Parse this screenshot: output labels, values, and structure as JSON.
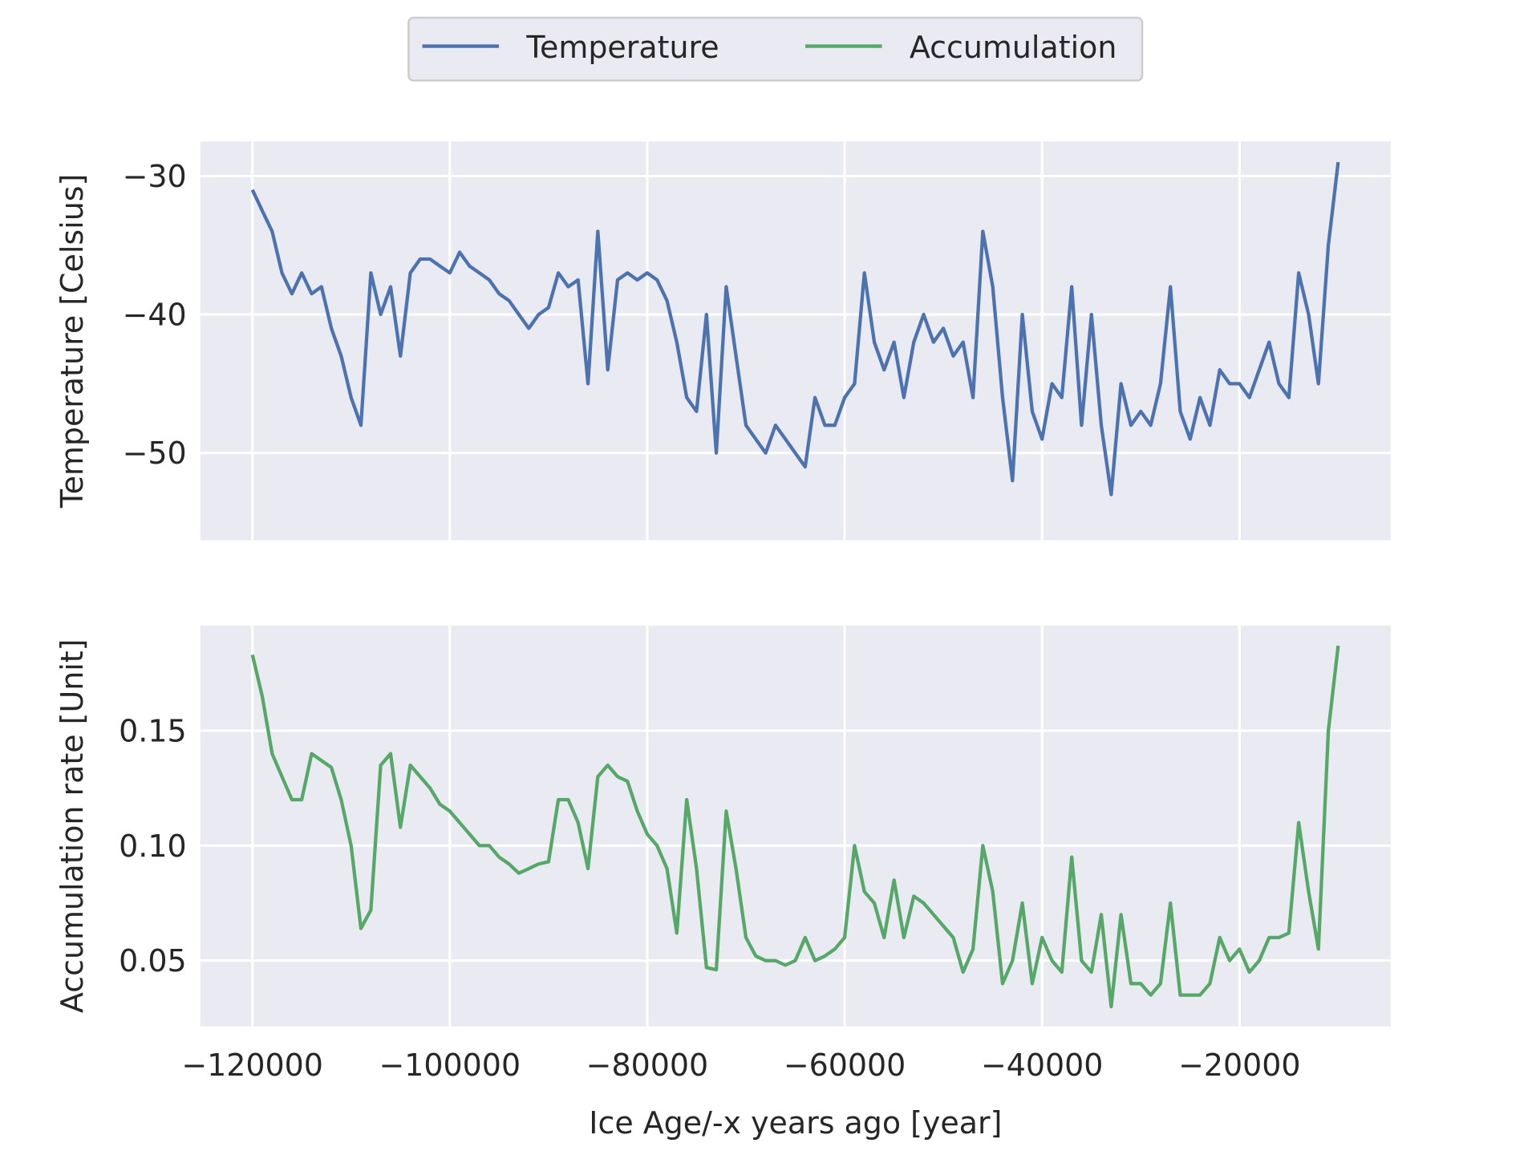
{
  "chart_data": [
    {
      "type": "line",
      "ylabel": "Temperature [Celsius]",
      "sharex": true,
      "x": [
        -120000,
        -119000,
        -118000,
        -117000,
        -116000,
        -115000,
        -114000,
        -113000,
        -112000,
        -111000,
        -110000,
        -109000,
        -108000,
        -107000,
        -106000,
        -105000,
        -104000,
        -103000,
        -102000,
        -101000,
        -100000,
        -99000,
        -98000,
        -97000,
        -96000,
        -95000,
        -94000,
        -93000,
        -92000,
        -91000,
        -90000,
        -89000,
        -88000,
        -87000,
        -86000,
        -85000,
        -84000,
        -83000,
        -82000,
        -81000,
        -80000,
        -79000,
        -78000,
        -77000,
        -76000,
        -75000,
        -74000,
        -73000,
        -72000,
        -71000,
        -70000,
        -69000,
        -68000,
        -67000,
        -66000,
        -65000,
        -64000,
        -63000,
        -62000,
        -61000,
        -60000,
        -59000,
        -58000,
        -57000,
        -56000,
        -55000,
        -54000,
        -53000,
        -52000,
        -51000,
        -50000,
        -49000,
        -48000,
        -47000,
        -46000,
        -45000,
        -44000,
        -43000,
        -42000,
        -41000,
        -40000,
        -39000,
        -38000,
        -37000,
        -36000,
        -35000,
        -34000,
        -33000,
        -32000,
        -31000,
        -30000,
        -29000,
        -28000,
        -27000,
        -26000,
        -25000,
        -24000,
        -23000,
        -22000,
        -21000,
        -20000,
        -19000,
        -18000,
        -17000,
        -16000,
        -15000,
        -14000,
        -13000,
        -12000,
        -11000,
        -10000
      ],
      "series": [
        {
          "name": "Temperature",
          "color": "#4c72b0",
          "values": [
            -31,
            -32.5,
            -34,
            -37,
            -38.5,
            -37,
            -38.5,
            -38,
            -41,
            -43,
            -46,
            -48,
            -37,
            -40,
            -38,
            -43,
            -37,
            -36,
            -36,
            -36.5,
            -37,
            -35.5,
            -36.5,
            -37,
            -37.5,
            -38.5,
            -39,
            -40,
            -41,
            -40,
            -39.5,
            -37,
            -38,
            -37.5,
            -45,
            -34,
            -44,
            -37.5,
            -37,
            -37.5,
            -37,
            -37.5,
            -39,
            -42,
            -46,
            -47,
            -40,
            -50,
            -38,
            -43,
            -48,
            -49,
            -50,
            -48,
            -49,
            -50,
            -51,
            -46,
            -48,
            -48,
            -46,
            -45,
            -37,
            -42,
            -44,
            -42,
            -46,
            -42,
            -40,
            -42,
            -41,
            -43,
            -42,
            -46,
            -34,
            -38,
            -46,
            -52,
            -40,
            -47,
            -49,
            -45,
            -46,
            -38,
            -48,
            -40,
            -48,
            -53,
            -45,
            -48,
            -47,
            -48,
            -45,
            -38,
            -47,
            -49,
            -46,
            -48,
            -44,
            -45,
            -45,
            -46,
            -44,
            -42,
            -45,
            -46,
            -37,
            -40,
            -45,
            -35,
            -29
          ]
        }
      ],
      "ylim": [
        -56.3,
        -27.5
      ],
      "yticks": [
        {
          "value": -30,
          "label": "−30"
        },
        {
          "value": -40,
          "label": "−40"
        },
        {
          "value": -50,
          "label": "−50"
        }
      ],
      "xlim": [
        -125270,
        -4680
      ],
      "grid": true
    },
    {
      "type": "line",
      "ylabel": "Accumulation rate [Unit]",
      "xlabel": "Ice Age/-x years ago [year]",
      "x": [
        -120000,
        -119000,
        -118000,
        -117000,
        -116000,
        -115000,
        -114000,
        -113000,
        -112000,
        -111000,
        -110000,
        -109000,
        -108000,
        -107000,
        -106000,
        -105000,
        -104000,
        -103000,
        -102000,
        -101000,
        -100000,
        -99000,
        -98000,
        -97000,
        -96000,
        -95000,
        -94000,
        -93000,
        -92000,
        -91000,
        -90000,
        -89000,
        -88000,
        -87000,
        -86000,
        -85000,
        -84000,
        -83000,
        -82000,
        -81000,
        -80000,
        -79000,
        -78000,
        -77000,
        -76000,
        -75000,
        -74000,
        -73000,
        -72000,
        -71000,
        -70000,
        -69000,
        -68000,
        -67000,
        -66000,
        -65000,
        -64000,
        -63000,
        -62000,
        -61000,
        -60000,
        -59000,
        -58000,
        -57000,
        -56000,
        -55000,
        -54000,
        -53000,
        -52000,
        -51000,
        -50000,
        -49000,
        -48000,
        -47000,
        -46000,
        -45000,
        -44000,
        -43000,
        -42000,
        -41000,
        -40000,
        -39000,
        -38000,
        -37000,
        -36000,
        -35000,
        -34000,
        -33000,
        -32000,
        -31000,
        -30000,
        -29000,
        -28000,
        -27000,
        -26000,
        -25000,
        -24000,
        -23000,
        -22000,
        -21000,
        -20000,
        -19000,
        -18000,
        -17000,
        -16000,
        -15000,
        -14000,
        -13000,
        -12000,
        -11000,
        -10000
      ],
      "series": [
        {
          "name": "Accumulation",
          "color": "#55a868",
          "values": [
            0.183,
            0.165,
            0.14,
            0.13,
            0.12,
            0.12,
            0.14,
            0.137,
            0.134,
            0.12,
            0.1,
            0.064,
            0.072,
            0.135,
            0.14,
            0.108,
            0.135,
            0.13,
            0.125,
            0.118,
            0.115,
            0.11,
            0.105,
            0.1,
            0.1,
            0.095,
            0.092,
            0.088,
            0.09,
            0.092,
            0.093,
            0.12,
            0.12,
            0.11,
            0.09,
            0.13,
            0.135,
            0.13,
            0.128,
            0.115,
            0.105,
            0.1,
            0.09,
            0.062,
            0.12,
            0.09,
            0.047,
            0.046,
            0.115,
            0.09,
            0.06,
            0.052,
            0.05,
            0.05,
            0.048,
            0.05,
            0.06,
            0.05,
            0.052,
            0.055,
            0.06,
            0.1,
            0.08,
            0.075,
            0.06,
            0.085,
            0.06,
            0.078,
            0.075,
            0.07,
            0.065,
            0.06,
            0.045,
            0.055,
            0.1,
            0.08,
            0.04,
            0.05,
            0.075,
            0.04,
            0.06,
            0.05,
            0.045,
            0.095,
            0.05,
            0.045,
            0.07,
            0.03,
            0.07,
            0.04,
            0.04,
            0.035,
            0.04,
            0.075,
            0.035,
            0.035,
            0.035,
            0.04,
            0.06,
            0.05,
            0.055,
            0.045,
            0.05,
            0.06,
            0.06,
            0.062,
            0.11,
            0.08,
            0.055,
            0.15,
            0.187
          ]
        }
      ],
      "ylim": [
        0.0214,
        0.1957
      ],
      "yticks": [
        0.05,
        {
          "value": 0.1,
          "label": "0.10"
        },
        0.15
      ],
      "xlim": [
        -125270,
        -4680
      ],
      "xticks": [
        {
          "value": -120000,
          "label": "−120000"
        },
        {
          "value": -100000,
          "label": "−100000"
        },
        {
          "value": -80000,
          "label": "−80000"
        },
        {
          "value": -60000,
          "label": "−60000"
        },
        {
          "value": -40000,
          "label": "−40000"
        },
        {
          "value": -20000,
          "label": "−20000"
        }
      ],
      "grid": true
    }
  ]
}
